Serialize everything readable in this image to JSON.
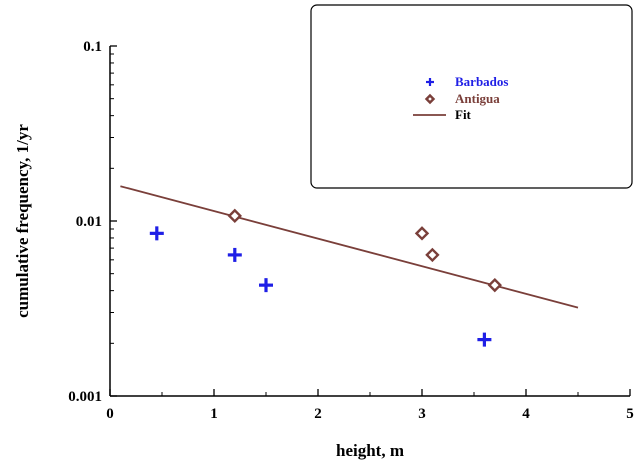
{
  "chart_data": {
    "type": "scatter",
    "xlabel": "height, m",
    "ylabel": "cumulative frequency, 1/yr",
    "xlim": [
      0,
      5
    ],
    "ylim": [
      0.001,
      0.1
    ],
    "yscale": "log",
    "x_ticks": [
      "0",
      "1",
      "2",
      "3",
      "4",
      "5"
    ],
    "y_ticks": [
      "0.001",
      "0.01",
      "0.1"
    ],
    "grid": false,
    "legend_position": "top-right",
    "series": [
      {
        "name": "Barbados",
        "marker": "plus",
        "color": "#1f1fe6",
        "points": [
          {
            "x": 0.45,
            "y": 0.0085
          },
          {
            "x": 1.2,
            "y": 0.0064
          },
          {
            "x": 1.5,
            "y": 0.0043
          },
          {
            "x": 3.6,
            "y": 0.0021
          }
        ]
      },
      {
        "name": "Antigua",
        "marker": "diamond",
        "color": "#7a3f3a",
        "points": [
          {
            "x": 1.2,
            "y": 0.0107
          },
          {
            "x": 3.0,
            "y": 0.0085
          },
          {
            "x": 3.1,
            "y": 0.0064
          },
          {
            "x": 3.7,
            "y": 0.0043
          }
        ]
      },
      {
        "name": "Fit",
        "marker": "line",
        "color": "#7a3f3a",
        "points": [
          {
            "x": 0.1,
            "y": 0.0158
          },
          {
            "x": 4.5,
            "y": 0.0032
          }
        ]
      }
    ]
  }
}
